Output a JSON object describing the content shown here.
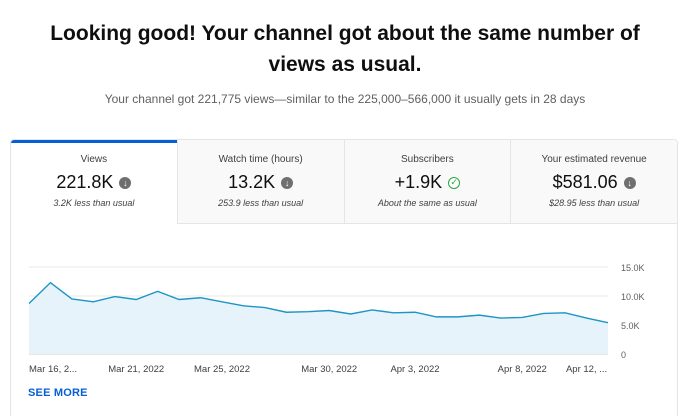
{
  "headline": "Looking good! Your channel got about the same number of views as usual.",
  "subline": "Your channel got 221,775 views—similar to the 225,000–566,000 it usually gets in 28 days",
  "tabs": [
    {
      "label": "Views",
      "value": "221.8K",
      "note": "3.2K less than usual",
      "icon": "down-arrow-icon",
      "active": true
    },
    {
      "label": "Watch time (hours)",
      "value": "13.2K",
      "note": "253.9 less than usual",
      "icon": "down-arrow-icon",
      "active": false
    },
    {
      "label": "Subscribers",
      "value": "+1.9K",
      "note": "About the same as usual",
      "icon": "check-icon",
      "active": false
    },
    {
      "label": "Your estimated revenue",
      "value": "$581.06",
      "note": "$28.95 less than usual",
      "icon": "down-arrow-icon",
      "active": false
    }
  ],
  "see_more": "SEE MORE",
  "colors": {
    "accent": "#065fd4",
    "line": "#1e95c4",
    "fill": "#e6f3fb",
    "check": "#2ba640"
  },
  "chart_data": {
    "type": "area",
    "x_tick_labels": [
      "Mar 16, 2...",
      "Mar 21, 2022",
      "Mar 25, 2022",
      "Mar 30, 2022",
      "Apr 3, 2022",
      "Apr 8, 2022",
      "Apr 12, ..."
    ],
    "x_tick_index": [
      0,
      5,
      9,
      14,
      18,
      23,
      26
    ],
    "y_tick_labels": [
      "15.0K",
      "10.0K",
      "5.0K",
      "0"
    ],
    "ylim": [
      0,
      15000
    ],
    "values": [
      8700,
      12300,
      9500,
      9000,
      9900,
      9400,
      10800,
      9400,
      9700,
      9000,
      8300,
      8000,
      7200,
      7300,
      7500,
      6900,
      7600,
      7100,
      7200,
      6400,
      6400,
      6700,
      6200,
      6300,
      7000,
      7100,
      6200,
      5400
    ],
    "grid": true
  }
}
